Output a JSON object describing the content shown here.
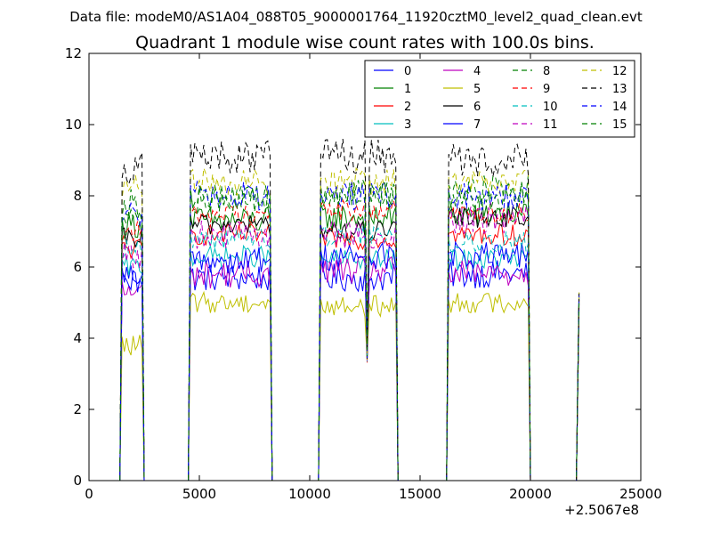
{
  "header": {
    "data_file": "Data file: modeM0/AS1A04_088T05_9000001764_11920cztM0_level2_quad_clean.evt"
  },
  "chart_data": {
    "type": "line",
    "title": "Quadrant 1 module wise count rates with 100.0s bins.",
    "xlabel": "",
    "ylabel": "",
    "xlim": [
      0,
      25000
    ],
    "ylim": [
      0,
      12
    ],
    "x_offset_label": "+2.5067e8",
    "x_ticks": [
      0,
      5000,
      10000,
      15000,
      20000,
      25000
    ],
    "y_ticks": [
      0,
      2,
      4,
      6,
      8,
      10,
      12
    ],
    "grid": false,
    "legend_placement": "top-right",
    "legend_columns": 4,
    "series": [
      {
        "name": "0",
        "color": "#0000ff",
        "dash": "solid",
        "base": [
          5.8,
          5.7,
          5.7,
          5.8,
          6.2
        ],
        "amp": 0.4
      },
      {
        "name": "1",
        "color": "#008000",
        "dash": "solid",
        "base": [
          7.2,
          7.3,
          7.4,
          7.5,
          7.2
        ],
        "amp": 0.4
      },
      {
        "name": "2",
        "color": "#ff0000",
        "dash": "solid",
        "base": [
          6.5,
          6.9,
          6.8,
          6.9,
          6.9
        ],
        "amp": 0.3
      },
      {
        "name": "3",
        "color": "#00bfbf",
        "dash": "solid",
        "base": [
          6.0,
          6.3,
          6.2,
          6.2,
          6.0
        ],
        "amp": 0.3
      },
      {
        "name": "4",
        "color": "#bf00bf",
        "dash": "solid",
        "base": [
          5.3,
          5.8,
          5.9,
          5.8,
          6.3
        ],
        "amp": 0.4
      },
      {
        "name": "5",
        "color": "#bfbf00",
        "dash": "solid",
        "base": [
          3.8,
          5.0,
          4.9,
          5.0,
          5.0
        ],
        "amp": 0.3
      },
      {
        "name": "6",
        "color": "#000000",
        "dash": "solid",
        "base": [
          6.8,
          7.2,
          7.0,
          7.4,
          7.1
        ],
        "amp": 0.3
      },
      {
        "name": "7",
        "color": "#0000ff",
        "dash": "solid",
        "base": [
          5.5,
          6.2,
          6.3,
          6.3,
          6.2
        ],
        "amp": 0.4
      },
      {
        "name": "8",
        "color": "#008000",
        "dash": "dashed",
        "base": [
          7.8,
          7.9,
          8.1,
          8.2,
          7.8
        ],
        "amp": 0.4
      },
      {
        "name": "9",
        "color": "#ff0000",
        "dash": "dashed",
        "base": [
          7.0,
          7.5,
          7.6,
          7.5,
          7.2
        ],
        "amp": 0.3
      },
      {
        "name": "10",
        "color": "#00bfbf",
        "dash": "dashed",
        "base": [
          6.5,
          6.8,
          6.9,
          6.7,
          6.5
        ],
        "amp": 0.3
      },
      {
        "name": "11",
        "color": "#bf00bf",
        "dash": "dashed",
        "base": [
          6.3,
          6.9,
          6.9,
          7.3,
          6.9
        ],
        "amp": 0.4
      },
      {
        "name": "12",
        "color": "#bfbf00",
        "dash": "dashed",
        "base": [
          8.2,
          8.4,
          8.4,
          8.4,
          8.2
        ],
        "amp": 0.4
      },
      {
        "name": "13",
        "color": "#000000",
        "dash": "dashed",
        "base": [
          8.8,
          9.1,
          9.1,
          9.0,
          8.6
        ],
        "amp": 0.5
      },
      {
        "name": "14",
        "color": "#0000ff",
        "dash": "dashed",
        "base": [
          7.5,
          8.0,
          8.0,
          8.0,
          7.9
        ],
        "amp": 0.4
      },
      {
        "name": "15",
        "color": "#008000",
        "dash": "dashed",
        "base": [
          7.6,
          7.9,
          8.0,
          8.0,
          7.8
        ],
        "amp": 0.4
      }
    ],
    "segments": [
      {
        "x_start": 1500,
        "x_end": 2400
      },
      {
        "x_start": 4600,
        "x_end": 8200
      },
      {
        "x_start": 10500,
        "x_end": 13900
      },
      {
        "x_start": 16300,
        "x_end": 19900
      },
      {
        "x_start": 22200,
        "x_end": 22200
      }
    ],
    "gap_value": 0,
    "bin_width": 100,
    "end_values": [
      5.0
    ],
    "dip": {
      "x": 12600,
      "value": 3.5
    }
  }
}
